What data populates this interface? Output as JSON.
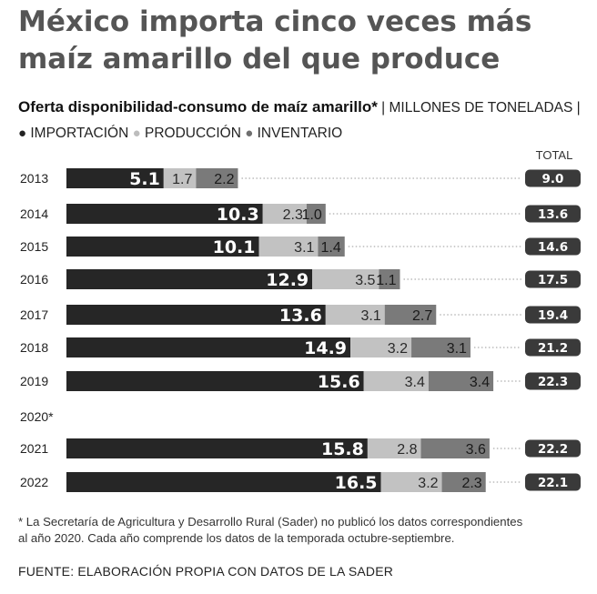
{
  "headline": {
    "line1": "México importa cinco veces más",
    "line2": "maíz amarillo del que produce"
  },
  "subtitle": {
    "title": "Oferta disponibilidad-consumo de maíz amarillo*",
    "unit": "MILLONES DE TONELADAS",
    "sep": "|"
  },
  "total_header": "TOTAL",
  "footnote": {
    "line1": "* La Secretaría de Agricultura y Desarrollo Rural (Sader) no publicó los datos correspondientes",
    "line2": "al año 2020. Cada año comprende los datos de la temporada octubre-septiembre."
  },
  "source": "FUENTE: ELABORACIÓN PROPIA CON DATOS DE LA SADER",
  "colors": {
    "importacion": "#262626",
    "produccion": "#c2c2c2",
    "inventario": "#7a7a7a",
    "total_pill": "#3a3a3a"
  },
  "chart_data": {
    "type": "bar",
    "orientation": "horizontal",
    "stacked": true,
    "title": "Oferta disponibilidad-consumo de maíz amarillo*",
    "unit": "MILLONES DE TONELADAS",
    "categories": [
      "2013",
      "2014",
      "2015",
      "2016",
      "2017",
      "2018",
      "2019",
      "2020*",
      "2021",
      "2022"
    ],
    "series": [
      {
        "name": "IMPORTACIÓN",
        "values": [
          5.1,
          10.3,
          10.1,
          12.9,
          13.6,
          14.9,
          15.6,
          null,
          15.8,
          16.5
        ]
      },
      {
        "name": "PRODUCCIÓN",
        "values": [
          1.7,
          2.3,
          3.1,
          3.5,
          3.1,
          3.2,
          3.4,
          null,
          2.8,
          3.2
        ]
      },
      {
        "name": "INVENTARIO",
        "values": [
          2.2,
          1.0,
          1.4,
          1.1,
          2.7,
          3.1,
          3.4,
          null,
          3.6,
          2.3
        ]
      }
    ],
    "value_labels": [
      [
        "5.1",
        "10.3",
        "10.1",
        "12.9",
        "13.6",
        "14.9",
        "15.6",
        null,
        "15.8",
        "16.5"
      ],
      [
        "1.7",
        "2.3",
        "3.1",
        "3.5",
        "3.1",
        "3.2",
        "3.4",
        null,
        "2.8",
        "3.2"
      ],
      [
        "2.2",
        "1.0",
        "1.4",
        "1.1",
        "2.7",
        "3.1",
        "3.4",
        null,
        "3.6",
        "2.3"
      ]
    ],
    "totals": [
      "9.0",
      "13.6",
      "14.6",
      "17.5",
      "19.4",
      "21.2",
      "22.3",
      null,
      "22.2",
      "22.1"
    ],
    "xlim": [
      0,
      22.3
    ],
    "legend": "top",
    "grid": false
  }
}
